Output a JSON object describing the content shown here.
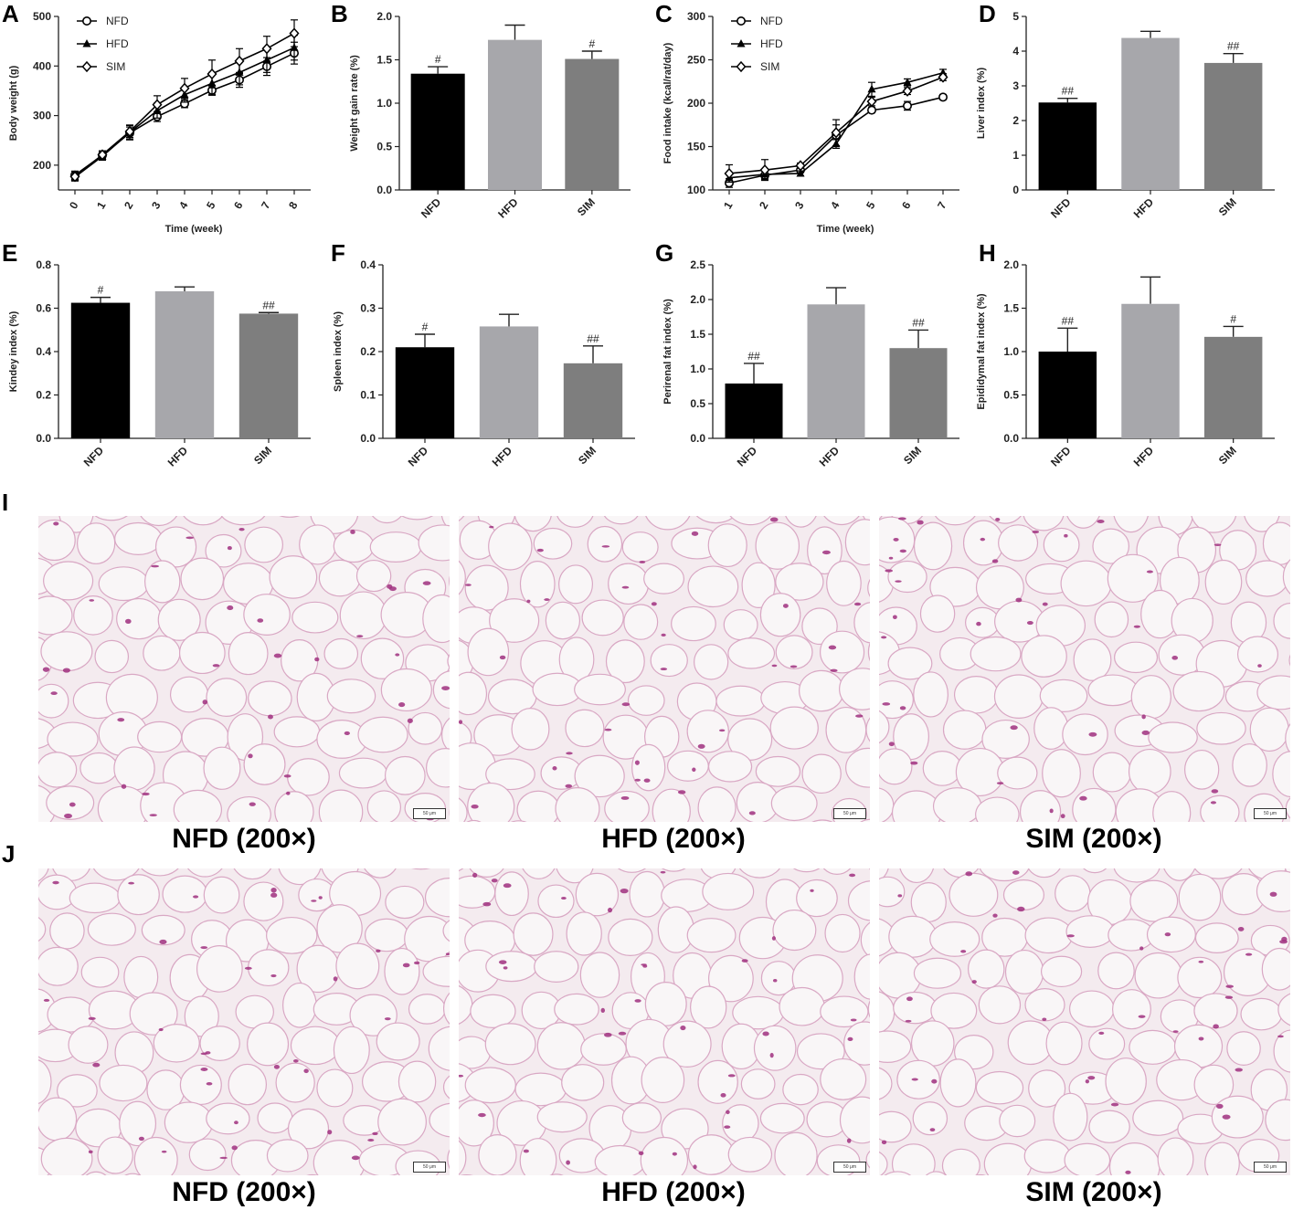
{
  "panel_labels": [
    "A",
    "B",
    "C",
    "D",
    "E",
    "F",
    "G",
    "H",
    "I",
    "J"
  ],
  "colors": {
    "NFD": "#000000",
    "HFD": "#a7a7ab",
    "SIM": "#7e7e7e",
    "axis": "#222222",
    "tissue_bg": "#f4ebef",
    "membrane": "#d9a8c4",
    "nuclei": "#a0307f"
  },
  "chart_data": [
    {
      "id": "A",
      "type": "line",
      "xlabel": "Time (week)",
      "ylabel": "Body weight (g)",
      "x": [
        0,
        1,
        2,
        3,
        4,
        5,
        6,
        7,
        8
      ],
      "ylim": [
        150,
        500
      ],
      "xticks": [
        "0",
        "1",
        "2",
        "3",
        "4",
        "5",
        "6",
        "7",
        "8"
      ],
      "yticks": [
        200,
        300,
        400,
        500
      ],
      "series": [
        {
          "name": "NFD",
          "marker": "circle",
          "values": [
            180,
            220,
            265,
            298,
            324,
            351,
            372,
            399,
            426
          ],
          "errors": [
            8,
            8,
            12,
            10,
            8,
            10,
            15,
            18,
            22
          ]
        },
        {
          "name": "HFD",
          "marker": "triangle",
          "values": [
            176,
            218,
            266,
            310,
            342,
            365,
            387,
            412,
            437
          ],
          "errors": [
            8,
            8,
            15,
            15,
            15,
            22,
            25,
            25,
            25
          ]
        },
        {
          "name": "SIM",
          "marker": "diamond",
          "values": [
            177,
            221,
            268,
            322,
            355,
            384,
            410,
            435,
            466
          ],
          "errors": [
            8,
            8,
            12,
            18,
            20,
            28,
            25,
            25,
            27
          ]
        }
      ],
      "legend": "top-left"
    },
    {
      "id": "B",
      "type": "bar",
      "ylabel": "Weight gain rate (%)",
      "categories": [
        "NFD",
        "HFD",
        "SIM"
      ],
      "values": [
        1.34,
        1.73,
        1.51
      ],
      "errors": [
        0.08,
        0.17,
        0.09
      ],
      "ylim": [
        0,
        2.0
      ],
      "yticks": [
        "0.0",
        "0.5",
        "1.0",
        "1.5",
        "2.0"
      ],
      "annotations": [
        "#",
        "",
        "#"
      ]
    },
    {
      "id": "C",
      "type": "line",
      "xlabel": "Time (week)",
      "ylabel": "Food intake (kcal/rat/day)",
      "x": [
        1,
        2,
        3,
        4,
        5,
        6,
        7
      ],
      "ylim": [
        100,
        300
      ],
      "xticks": [
        "1",
        "2",
        "3",
        "4",
        "5",
        "6",
        "7"
      ],
      "yticks": [
        100,
        150,
        200,
        250,
        300
      ],
      "series": [
        {
          "name": "NFD",
          "marker": "circle",
          "values": [
            108,
            117,
            123,
            163,
            192,
            197,
            207
          ],
          "errors": [
            5,
            5,
            3,
            12,
            3,
            5,
            3
          ]
        },
        {
          "name": "HFD",
          "marker": "triangle",
          "values": [
            114,
            118,
            119,
            153,
            216,
            224,
            235
          ],
          "errors": [
            5,
            5,
            3,
            5,
            8,
            4,
            4
          ]
        },
        {
          "name": "SIM",
          "marker": "diamond",
          "values": [
            119,
            123,
            128,
            166,
            202,
            214,
            230
          ],
          "errors": [
            10,
            12,
            3,
            15,
            5,
            4,
            4
          ]
        }
      ],
      "legend": "top-left"
    },
    {
      "id": "D",
      "type": "bar",
      "ylabel": "Liver index (%)",
      "categories": [
        "NFD",
        "HFD",
        "SIM"
      ],
      "values": [
        2.52,
        4.38,
        3.66
      ],
      "errors": [
        0.12,
        0.19,
        0.27
      ],
      "ylim": [
        0,
        5
      ],
      "yticks": [
        "0",
        "1",
        "2",
        "3",
        "4",
        "5"
      ],
      "annotations": [
        "##",
        "",
        "##"
      ]
    },
    {
      "id": "E",
      "type": "bar",
      "ylabel": "Kindey index (%)",
      "categories": [
        "NFD",
        "HFD",
        "SIM"
      ],
      "values": [
        0.625,
        0.678,
        0.575
      ],
      "errors": [
        0.025,
        0.02,
        0.005
      ],
      "ylim": [
        0,
        0.8
      ],
      "yticks": [
        "0.0",
        "0.2",
        "0.4",
        "0.6",
        "0.8"
      ],
      "annotations": [
        "#",
        "",
        "##"
      ]
    },
    {
      "id": "F",
      "type": "bar",
      "ylabel": "Spleen index (%)",
      "categories": [
        "NFD",
        "HFD",
        "SIM"
      ],
      "values": [
        0.21,
        0.258,
        0.173
      ],
      "errors": [
        0.03,
        0.028,
        0.04
      ],
      "ylim": [
        0,
        0.4
      ],
      "yticks": [
        "0.0",
        "0.1",
        "0.2",
        "0.3",
        "0.4"
      ],
      "annotations": [
        "#",
        "",
        "##"
      ]
    },
    {
      "id": "G",
      "type": "bar",
      "ylabel": "Perirenal fat index (%)",
      "categories": [
        "NFD",
        "HFD",
        "SIM"
      ],
      "values": [
        0.79,
        1.93,
        1.3
      ],
      "errors": [
        0.29,
        0.24,
        0.26
      ],
      "ylim": [
        0,
        2.5
      ],
      "yticks": [
        "0.0",
        "0.5",
        "1.0",
        "1.5",
        "2.0",
        "2.5"
      ],
      "annotations": [
        "##",
        "",
        "##"
      ]
    },
    {
      "id": "H",
      "type": "bar",
      "ylabel": "Epididymal fat index (%)",
      "categories": [
        "NFD",
        "HFD",
        "SIM"
      ],
      "values": [
        1.0,
        1.55,
        1.17
      ],
      "errors": [
        0.27,
        0.31,
        0.12
      ],
      "ylim": [
        0,
        2.0
      ],
      "yticks": [
        "0.0",
        "0.5",
        "1.0",
        "1.5",
        "2.0"
      ],
      "annotations": [
        "##",
        "",
        "#"
      ]
    }
  ],
  "histology": {
    "row_I": [
      "NFD (200×)",
      "HFD (200×)",
      "SIM (200×)"
    ],
    "row_J": [
      "NFD (200×)",
      "HFD (200×)",
      "SIM (200×)"
    ],
    "scale_bar": "50 μm"
  }
}
